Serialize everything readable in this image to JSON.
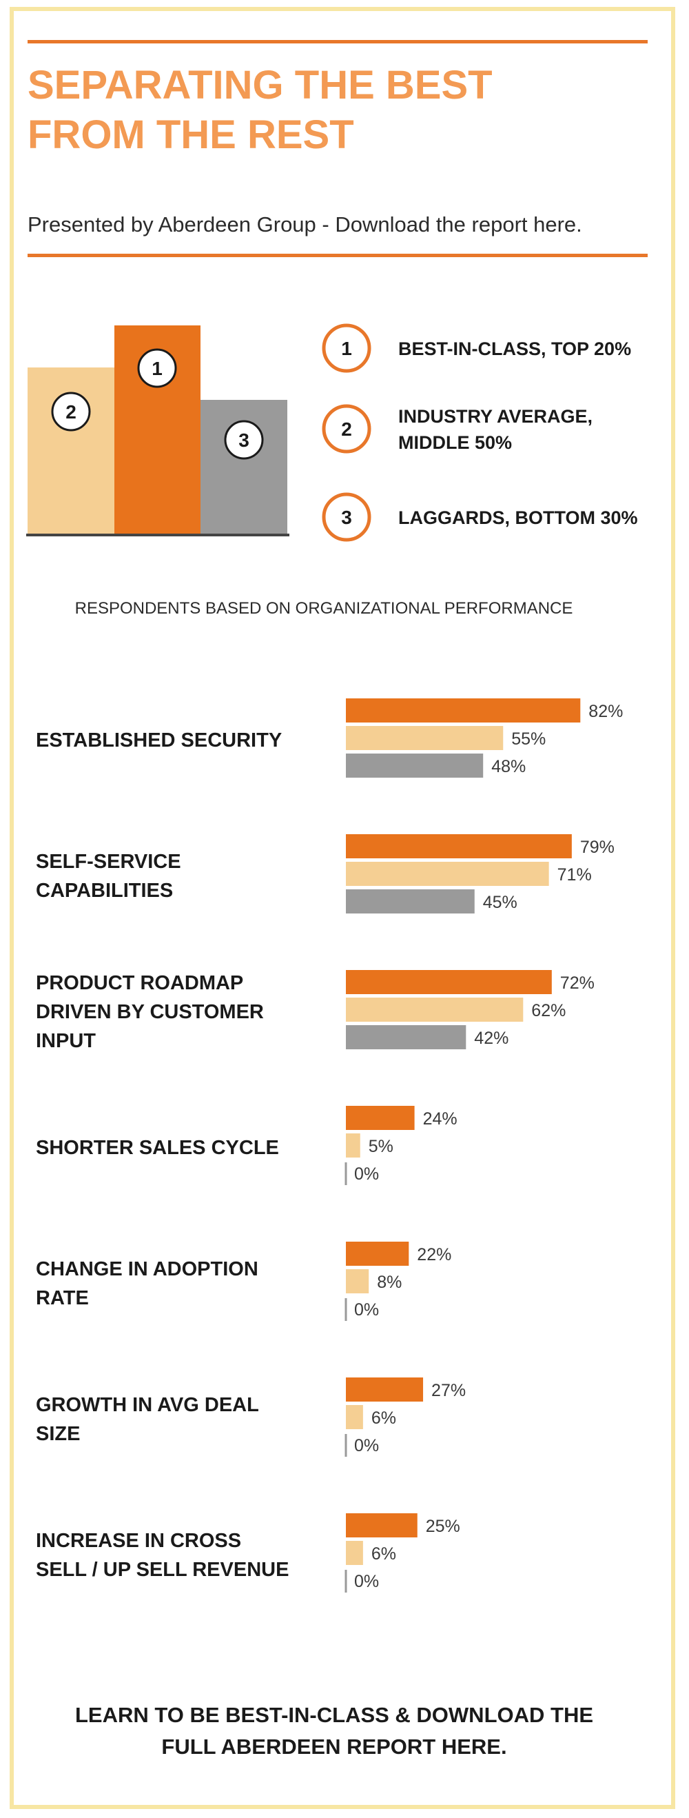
{
  "header": {
    "title_line1": "SEPARATING THE BEST",
    "title_line2": "FROM THE REST",
    "subtitle_prefix": "Presented by Aberdeen Group - ",
    "subtitle_link": "Download the report here."
  },
  "legend": {
    "items": [
      {
        "number": "1",
        "label_lines": [
          "BEST-IN-CLASS, TOP 20%"
        ]
      },
      {
        "number": "2",
        "label_lines": [
          "INDUSTRY AVERAGE,",
          "MIDDLE 50%"
        ]
      },
      {
        "number": "3",
        "label_lines": [
          "LAGGARDS, BOTTOM 30%"
        ]
      }
    ]
  },
  "podium": {
    "labels": [
      "2",
      "1",
      "3"
    ]
  },
  "colors": {
    "best_in_class": "#e8731c",
    "industry_average": "#f5cf93",
    "laggards": "#9a9a9a",
    "accent": "#e8772a",
    "title": "#f39a53"
  },
  "chart_data": {
    "type": "bar",
    "title": "RESPONDENTS BASED ON ORGANIZATIONAL PERFORMANCE",
    "orientation": "horizontal",
    "categories": [
      "ESTABLISHED SECURITY",
      "SELF-SERVICE CAPABILITIES",
      "PRODUCT ROADMAP DRIVEN BY CUSTOMER INPUT",
      "SHORTER SALES CYCLE",
      "CHANGE IN ADOPTION RATE",
      "GROWTH IN AVG DEAL SIZE",
      "INCREASE IN CROSS SELL / UP SELL REVENUE"
    ],
    "category_lines": [
      [
        "ESTABLISHED SECURITY"
      ],
      [
        "SELF-SERVICE",
        "CAPABILITIES"
      ],
      [
        "PRODUCT ROADMAP",
        "DRIVEN BY CUSTOMER",
        "INPUT"
      ],
      [
        "SHORTER SALES CYCLE"
      ],
      [
        "CHANGE IN ADOPTION",
        "RATE"
      ],
      [
        "GROWTH IN AVG DEAL",
        "SIZE"
      ],
      [
        "INCREASE IN CROSS",
        "SELL / UP SELL REVENUE"
      ]
    ],
    "series": [
      {
        "name": "1",
        "values": [
          82,
          79,
          72,
          24,
          22,
          27,
          25
        ]
      },
      {
        "name": "2",
        "values": [
          55,
          71,
          62,
          5,
          8,
          6,
          6
        ]
      },
      {
        "name": "3",
        "values": [
          48,
          45,
          42,
          0,
          0,
          0,
          0
        ]
      }
    ],
    "value_suffix": "%",
    "xlim": [
      0,
      100
    ],
    "grid": false,
    "legend": "top"
  },
  "footer": {
    "cta_line1": "LEARN TO BE BEST-IN-CLASS & DOWNLOAD THE",
    "cta_line2": "FULL ABERDEEN REPORT HERE."
  }
}
